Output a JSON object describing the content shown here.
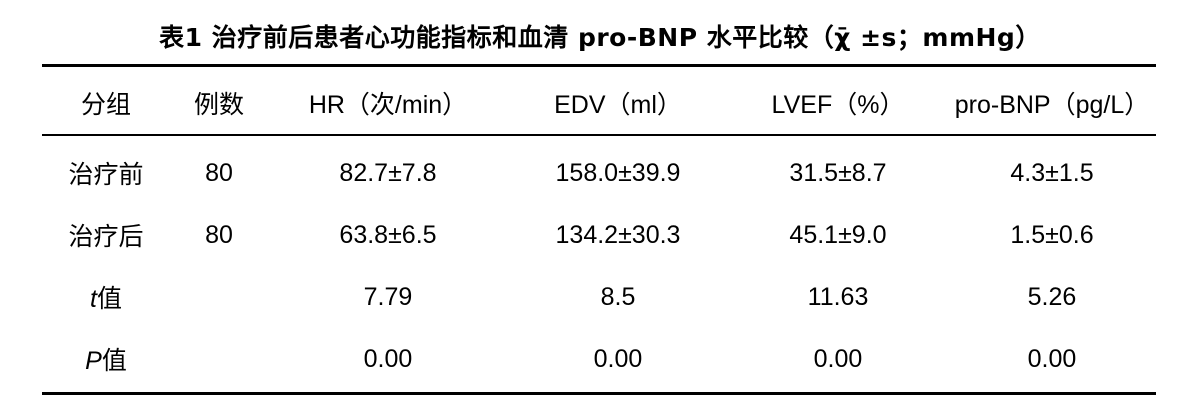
{
  "caption": "表1   治疗前后患者心功能指标和血清 pro-BNP 水平比较（χ̄ ±s；mmHg）",
  "table": {
    "headers": [
      "分组",
      "例数",
      "HR（次/min）",
      "EDV（ml）",
      "LVEF（%）",
      "pro-BNP（pg/L）"
    ],
    "rows": [
      [
        "治疗前",
        "80",
        "82.7±7.8",
        "158.0±39.9",
        "31.5±8.7",
        "4.3±1.5"
      ],
      [
        "治疗后",
        "80",
        "63.8±6.5",
        "134.2±30.3",
        "45.1±9.0",
        "1.5±0.6"
      ],
      [
        "t值",
        "",
        "7.79",
        "8.5",
        "11.63",
        "5.26"
      ],
      [
        "P值",
        "",
        "0.00",
        "0.00",
        "0.00",
        "0.00"
      ]
    ]
  },
  "stat_labels": {
    "t": {
      "symbol": "t",
      "suffix": "值"
    },
    "p": {
      "symbol": "P",
      "suffix": "值"
    }
  }
}
